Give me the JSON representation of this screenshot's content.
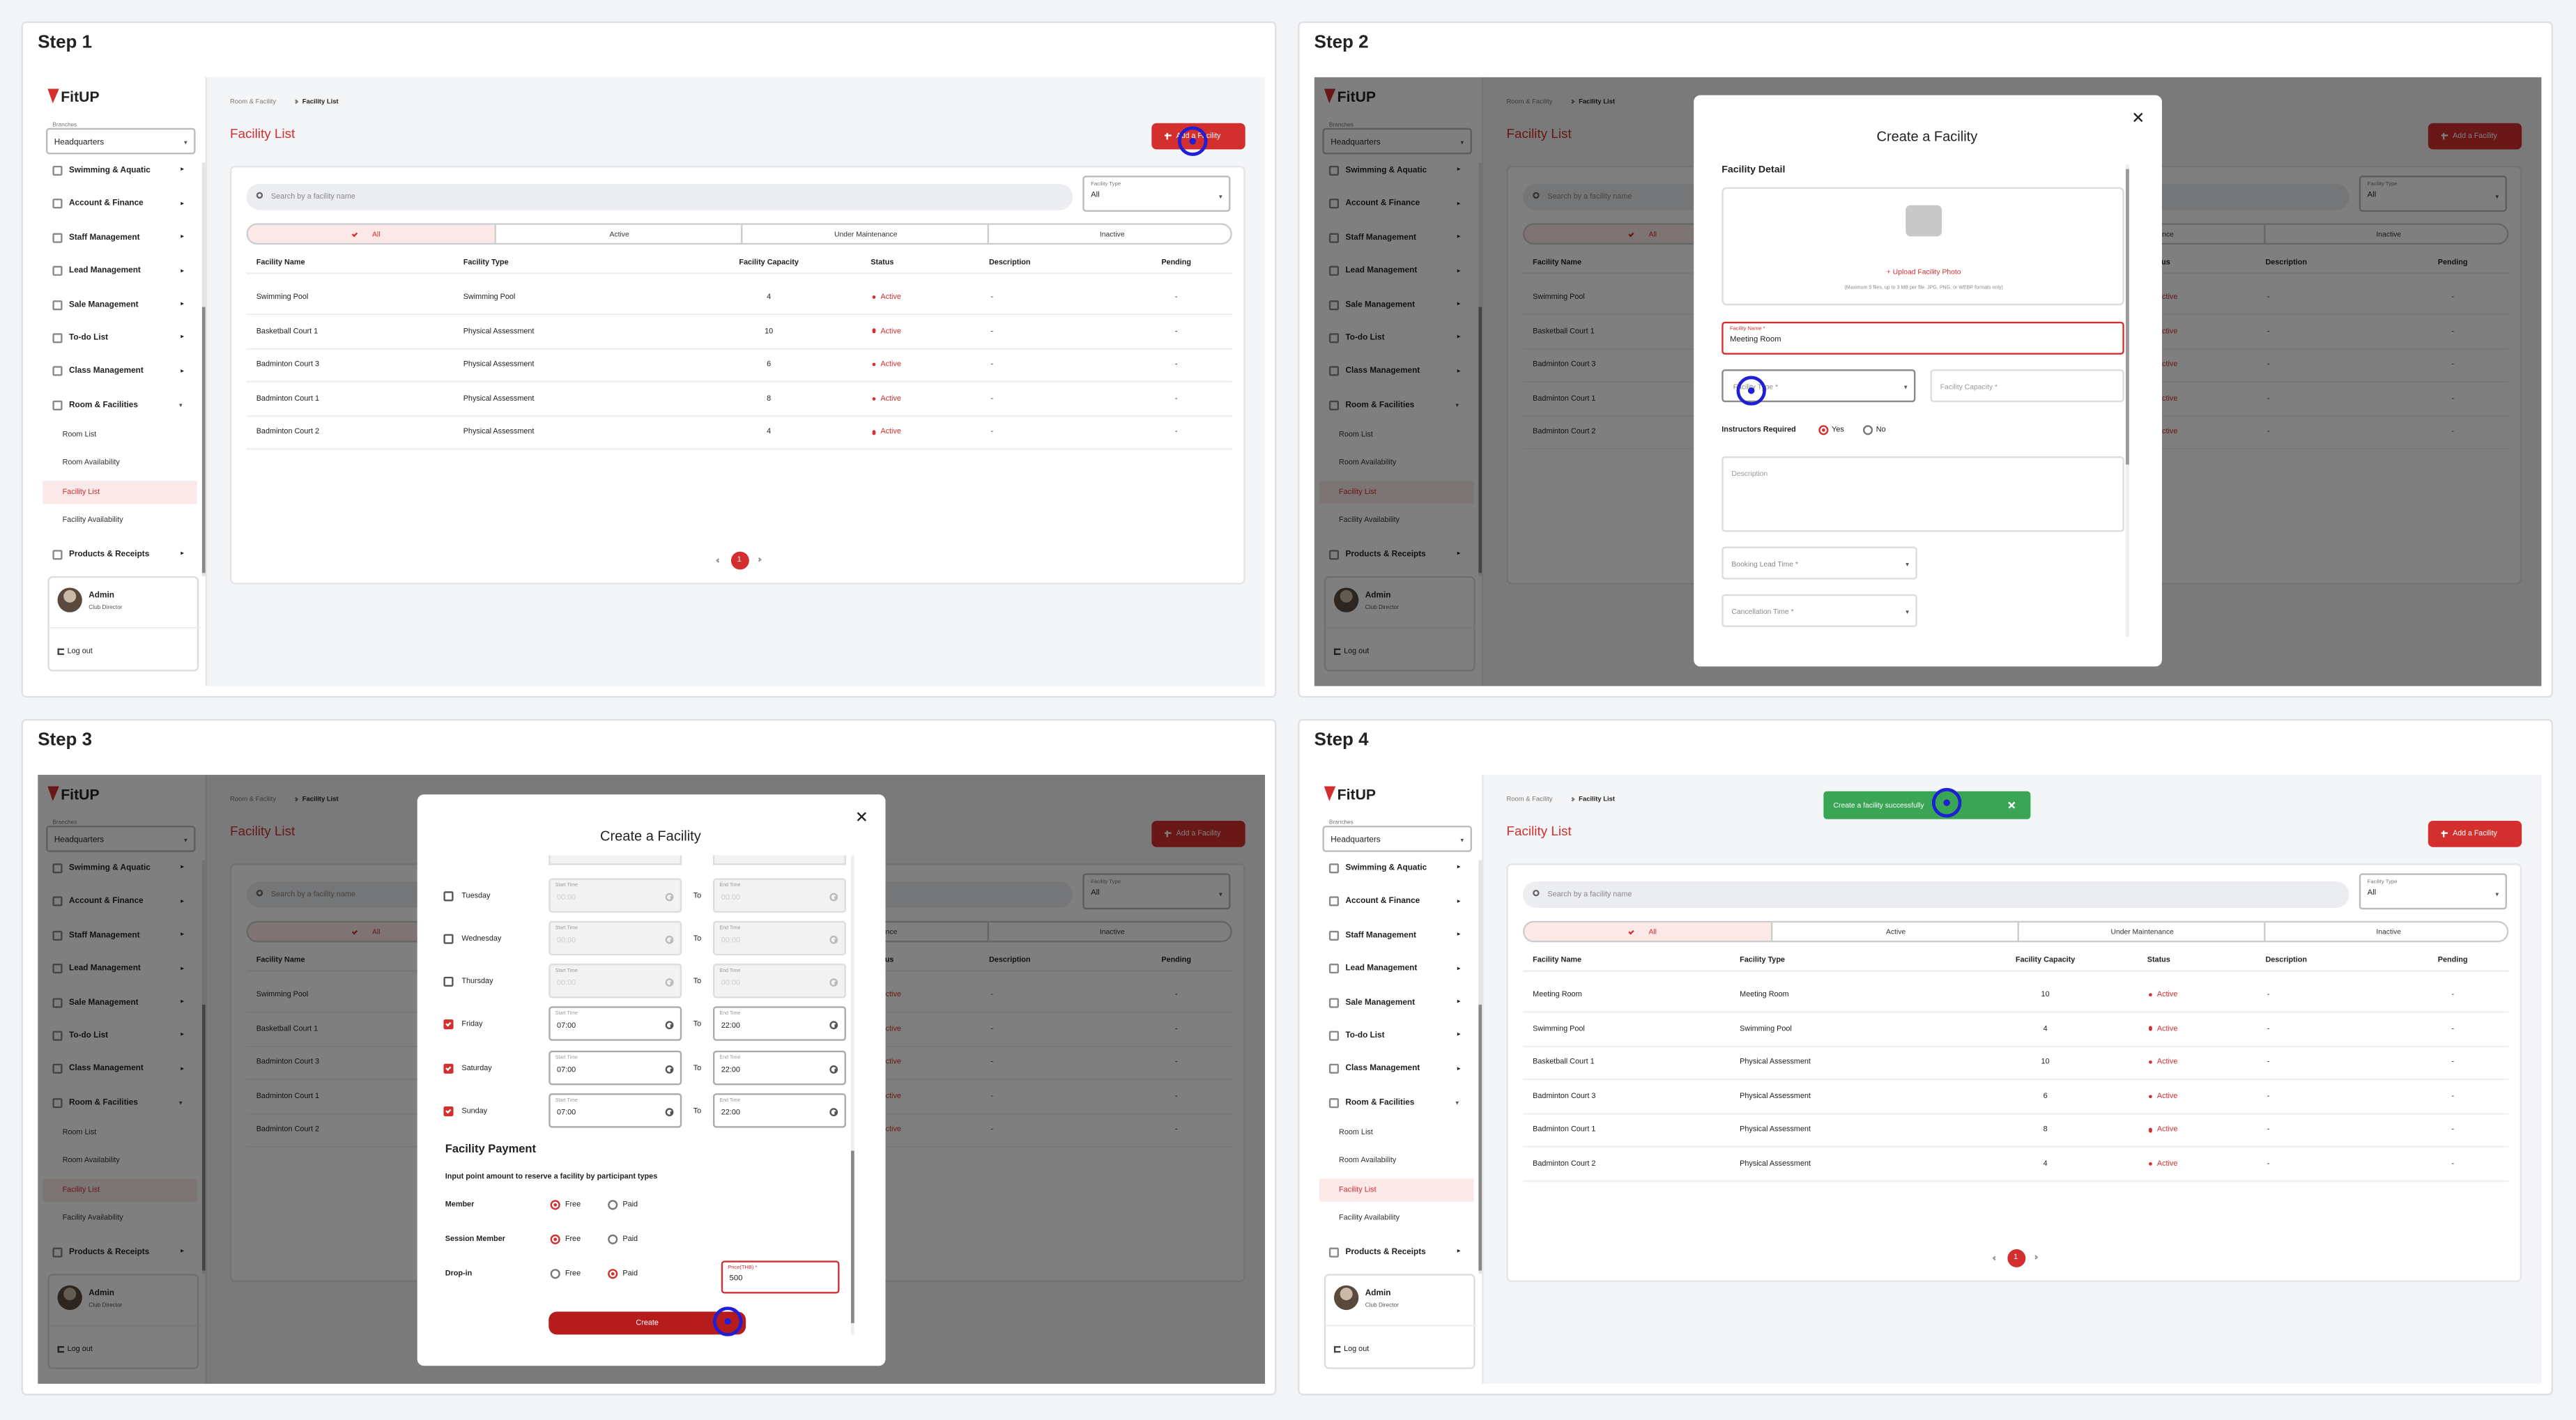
{
  "steps": [
    "Step 1",
    "Step 2",
    "Step 3",
    "Step 4"
  ],
  "sidebar": {
    "logo": "FitUP",
    "branch_label": "Branches",
    "branch": "Headquarters",
    "menu": [
      "Swimming & Aquatic",
      "Account & Finance",
      "Staff Management",
      "Lead Management",
      "Sale Management",
      "To-do List",
      "Class Management",
      "Room & Facilities"
    ],
    "submenu": [
      "Room List",
      "Room Availability",
      "Facility List",
      "Facility Availability"
    ],
    "last_menu": "Products & Receipts",
    "user_name": "Admin",
    "user_role": "Club Director",
    "logout": "Log out"
  },
  "list_page": {
    "breadcrumb": [
      "Room & Facility",
      "Facility List"
    ],
    "title": "Facility List",
    "add_button": "Add a Facility",
    "search_placeholder": "Search by a facility name",
    "filter_label": "Facility Type",
    "filter_value": "All",
    "tabs": [
      "All",
      "Active",
      "Under Maintenance",
      "Inactive"
    ],
    "columns": [
      "Facility Name",
      "Facility Type",
      "Facility Capacity",
      "Status",
      "Description",
      "Pending"
    ],
    "rows": [
      [
        "Swimming Pool",
        "Swimming Pool",
        4,
        "Active",
        "-",
        "-"
      ],
      [
        "Basketball Court 1",
        "Physical Assessment",
        10,
        "Active",
        "-",
        "-"
      ],
      [
        "Badminton Court 3",
        "Physical Assessment",
        6,
        "Active",
        "-",
        "-"
      ],
      [
        "Badminton Court 1",
        "Physical Assessment",
        8,
        "Active",
        "-",
        "-"
      ],
      [
        "Badminton Court 2",
        "Physical Assessment",
        4,
        "Active",
        "-",
        "-"
      ]
    ],
    "page": "1"
  },
  "create_modal": {
    "title": "Create a Facility",
    "section": "Facility Detail",
    "upload": "+ Upload Facility Photo",
    "upload_note": "(Maximum 5 files, up to 3 MB per file. JPG, PNG, or WEBP formats only)",
    "name_label": "Facility Name *",
    "name_value": "Meeting Room",
    "type_label": "Facility Type *",
    "capacity_label": "Facility Capacity *",
    "instructors_label": "Instructors Required",
    "yes": "Yes",
    "no": "No",
    "description": "Description",
    "lead_time": "Booking Lead Time *",
    "cancellation": "Cancellation Time *"
  },
  "schedule": {
    "days": [
      {
        "day": "Tuesday",
        "start": "00:00",
        "end": "00:00",
        "checked": false
      },
      {
        "day": "Wednesday",
        "start": "00:00",
        "end": "00:00",
        "checked": false
      },
      {
        "day": "Thursday",
        "start": "00:00",
        "end": "00:00",
        "checked": false
      },
      {
        "day": "Friday",
        "start": "07:00",
        "end": "22:00",
        "checked": true
      },
      {
        "day": "Saturday",
        "start": "07:00",
        "end": "22:00",
        "checked": true
      },
      {
        "day": "Sunday",
        "start": "07:00",
        "end": "22:00",
        "checked": true
      }
    ],
    "start_label": "Start Time",
    "end_label": "End Time",
    "to": "To",
    "payment_title": "Facility Payment",
    "payment_note": "Input point amount to reserve a facility by participant types",
    "participants": [
      "Member",
      "Session Member",
      "Drop-in"
    ],
    "free": "Free",
    "paid": "Paid",
    "selected": [
      0,
      0,
      1
    ],
    "price_label": "Price(THB) *",
    "price_value": "500",
    "create": "Create"
  },
  "result": {
    "toast": "Create a facility successfully",
    "rows": [
      [
        "Meeting Room",
        "Meeting Room",
        10,
        "Active",
        "-",
        "-"
      ],
      [
        "Swimming Pool",
        "Swimming Pool",
        4,
        "Active",
        "-",
        "-"
      ],
      [
        "Basketball Court 1",
        "Physical Assessment",
        10,
        "Active",
        "-",
        "-"
      ],
      [
        "Badminton Court 3",
        "Physical Assessment",
        6,
        "Active",
        "-",
        "-"
      ],
      [
        "Badminton Court 1",
        "Physical Assessment",
        8,
        "Active",
        "-",
        "-"
      ],
      [
        "Badminton Court 2",
        "Physical Assessment",
        4,
        "Active",
        "-",
        "-"
      ]
    ]
  }
}
